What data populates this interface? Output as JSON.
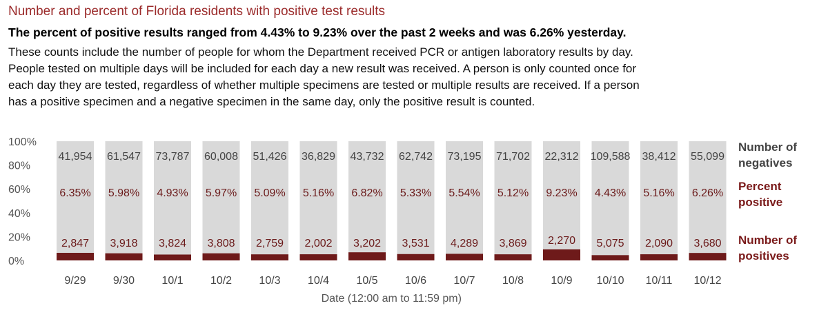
{
  "chart_data": {
    "type": "bar",
    "title": "Number and percent of Florida residents with positive test results",
    "subtitle": "The percent of positive results ranged from 4.43% to 9.23% over the past 2 weeks and was 6.26% yesterday.",
    "description": [
      "These counts include the number of people for whom the Department received PCR or antigen laboratory results by day.",
      "People tested on multiple days will be included for each day a new result was received. A person is only counted once for",
      "each day they are tested, regardless of whether multiple specimens are tested or multiple results are received. If a person",
      "has a positive specimen and a negative specimen in the same day, only the positive result is counted."
    ],
    "xlabel": "Date (12:00 am to 11:59 pm)",
    "ylabel": "",
    "ylim": [
      0,
      100
    ],
    "yticks": [
      "100%",
      "80%",
      "60%",
      "40%",
      "20%",
      "0%"
    ],
    "categories": [
      "9/29",
      "9/30",
      "10/1",
      "10/2",
      "10/3",
      "10/4",
      "10/5",
      "10/6",
      "10/7",
      "10/8",
      "10/9",
      "10/10",
      "10/11",
      "10/12"
    ],
    "negatives_labels": [
      "41,954",
      "61,547",
      "73,787",
      "60,008",
      "51,426",
      "36,829",
      "43,732",
      "62,742",
      "73,195",
      "71,702",
      "22,312",
      "109,588",
      "38,412",
      "55,099"
    ],
    "percent_labels": [
      "6.35%",
      "5.98%",
      "4.93%",
      "5.97%",
      "5.09%",
      "5.16%",
      "6.82%",
      "5.33%",
      "5.54%",
      "5.12%",
      "9.23%",
      "4.43%",
      "5.16%",
      "6.26%"
    ],
    "positives_labels": [
      "2,847",
      "3,918",
      "3,824",
      "3,808",
      "2,759",
      "2,002",
      "3,202",
      "3,531",
      "4,289",
      "3,869",
      "2,270",
      "5,075",
      "2,090",
      "3,680"
    ],
    "percent_positive": [
      6.35,
      5.98,
      4.93,
      5.97,
      5.09,
      5.16,
      6.82,
      5.33,
      5.54,
      5.12,
      9.23,
      4.43,
      5.16,
      6.26
    ],
    "legend": {
      "negatives": [
        "Number of",
        "negatives"
      ],
      "percent": [
        "Percent",
        "positive"
      ],
      "positives": [
        "Number of",
        "positives"
      ]
    },
    "colors": {
      "negatives": "#d9d9d9",
      "positives": "#6e1a1a",
      "title": "#9b2b2b"
    },
    "grid": false
  }
}
